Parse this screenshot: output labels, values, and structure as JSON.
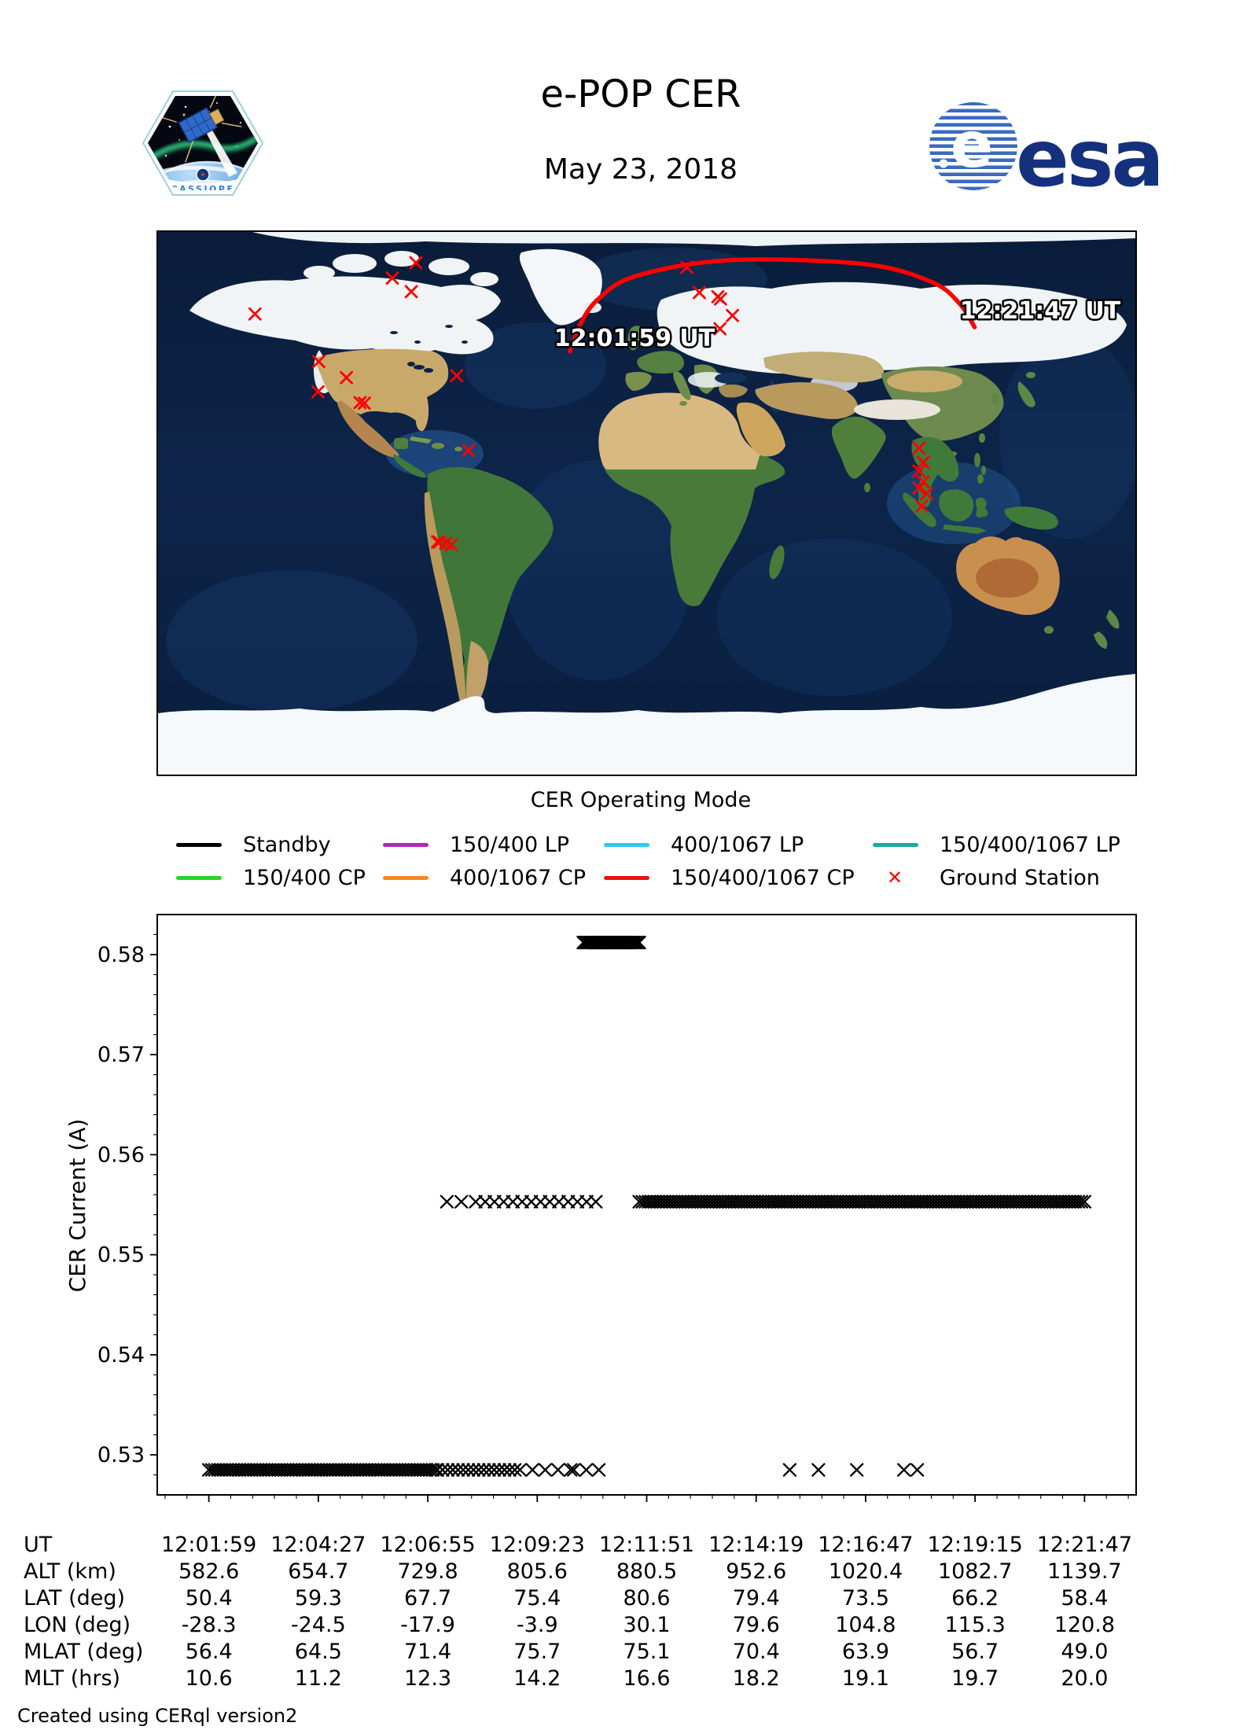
{
  "header": {
    "title": "e-POP CER",
    "date": "May 23, 2018",
    "patch_label": "CASSIOPE",
    "esa_label": "esa",
    "esa_color": "#15317e"
  },
  "map": {
    "border_color": "#000000",
    "track_color": "#ff0000",
    "station_color": "#ff0000",
    "labels": [
      {
        "text": "12:01:59 UT",
        "fx": 0.4875,
        "fy": 0.21
      },
      {
        "text": "12:21:47 UT",
        "fx": 0.903,
        "fy": 0.16
      }
    ],
    "track_points_lonlat": [
      [
        -28.3,
        50.4
      ],
      [
        -24.5,
        59.3
      ],
      [
        -17.9,
        67.7
      ],
      [
        -3.9,
        75.4
      ],
      [
        30.1,
        80.6
      ],
      [
        79.6,
        79.4
      ],
      [
        104.8,
        73.5
      ],
      [
        115.3,
        66.2
      ],
      [
        120.8,
        58.4
      ]
    ],
    "ground_stations_lonlat": [
      [
        -85.0,
        79.8
      ],
      [
        -93.7,
        74.7
      ],
      [
        -86.7,
        70.2
      ],
      [
        -144.3,
        62.8
      ],
      [
        -120.8,
        47.0
      ],
      [
        -110.6,
        41.7
      ],
      [
        -121.1,
        37.0
      ],
      [
        -105.6,
        33.4
      ],
      [
        -104.0,
        33.2
      ],
      [
        -70.0,
        42.3
      ],
      [
        -65.6,
        17.5
      ],
      [
        -77.0,
        -12.8
      ],
      [
        -76.4,
        -12.9
      ],
      [
        -74.0,
        -13.3
      ],
      [
        -72.0,
        -13.8
      ],
      [
        14.8,
        78.3
      ],
      [
        19.4,
        69.9
      ],
      [
        26.2,
        68.5
      ],
      [
        27.2,
        67.8
      ],
      [
        31.6,
        62.3
      ],
      [
        27.0,
        57.9
      ],
      [
        100.3,
        18.3
      ],
      [
        101.9,
        13.6
      ],
      [
        100.3,
        10.7
      ],
      [
        101.9,
        7.1
      ],
      [
        100.3,
        5.0
      ],
      [
        103.2,
        3.2
      ],
      [
        101.3,
        -1.0
      ]
    ]
  },
  "legend": {
    "title": "CER Operating Mode",
    "items": [
      {
        "label": "Standby",
        "color": "#000000",
        "marker": "line",
        "col": 0,
        "row": 0
      },
      {
        "label": "150/400 LP",
        "color": "#b428b4",
        "marker": "line",
        "col": 1,
        "row": 0
      },
      {
        "label": "400/1067 LP",
        "color": "#2fc8f0",
        "marker": "line",
        "col": 2,
        "row": 0
      },
      {
        "label": "150/400/1067 LP",
        "color": "#1fa8a0",
        "marker": "line",
        "col": 3,
        "row": 0
      },
      {
        "label": "150/400 CP",
        "color": "#28d528",
        "marker": "line",
        "col": 0,
        "row": 1
      },
      {
        "label": "400/1067 CP",
        "color": "#f6871f",
        "marker": "line",
        "col": 1,
        "row": 1
      },
      {
        "label": "150/400/1067 CP",
        "color": "#e81216",
        "marker": "line",
        "col": 2,
        "row": 1
      },
      {
        "label": "Ground Station",
        "color": "#ff0000",
        "marker": "x",
        "col": 3,
        "row": 1
      }
    ]
  },
  "chart_data": {
    "type": "scatter",
    "marker": "x",
    "color": "#000000",
    "ylabel": "CER Current (A)",
    "ylim": [
      0.526,
      0.584
    ],
    "yticks": [
      0.53,
      0.54,
      0.55,
      0.56,
      0.57,
      0.58
    ],
    "ytick_labels": [
      "0.53",
      "0.54",
      "0.55",
      "0.56",
      "0.57",
      "0.58"
    ],
    "y_minor_step": 0.002,
    "grid": false,
    "xlim_seconds": [
      -70,
      1258
    ],
    "x_major_ticks_seconds": [
      0,
      148.5,
      297,
      445.5,
      594,
      742.5,
      891,
      1039.5,
      1188
    ],
    "x_minor_step_seconds": 29.7,
    "x_tick_times": [
      "12:01:59",
      "12:04:27",
      "12:06:55",
      "12:09:23",
      "12:11:51",
      "12:14:19",
      "12:16:47",
      "12:19:15",
      "12:21:47"
    ],
    "current_levels_amps": {
      "standby": 0.5285,
      "mid": 0.5553,
      "high": 0.5812
    },
    "segments": [
      {
        "t0": 0,
        "t1": 308,
        "value": 0.5285,
        "n": 76
      },
      {
        "t0": 310,
        "t1": 422,
        "value": 0.5285,
        "n": 17
      },
      {
        "t0": 439,
        "t1": 491,
        "value": 0.5285,
        "n": 4
      },
      {
        "t0": 495,
        "t1": 529,
        "value": 0.5285,
        "n": 3
      },
      {
        "t0": 788,
        "t1": 788,
        "value": 0.5285,
        "n": 1
      },
      {
        "t0": 827,
        "t1": 827,
        "value": 0.5285,
        "n": 1
      },
      {
        "t0": 879,
        "t1": 879,
        "value": 0.5285,
        "n": 1
      },
      {
        "t0": 943,
        "t1": 961,
        "value": 0.5285,
        "n": 2
      },
      {
        "t0": 323,
        "t1": 362,
        "value": 0.5553,
        "n": 3
      },
      {
        "t0": 375,
        "t1": 525,
        "value": 0.5553,
        "n": 13
      },
      {
        "t0": 584,
        "t1": 1188,
        "value": 0.5553,
        "n": 145
      },
      {
        "t0": 508,
        "t1": 584,
        "value": 0.5812,
        "n": 42
      }
    ]
  },
  "table": {
    "rows": [
      {
        "label": "UT",
        "values": [
          "12:01:59",
          "12:04:27",
          "12:06:55",
          "12:09:23",
          "12:11:51",
          "12:14:19",
          "12:16:47",
          "12:19:15",
          "12:21:47"
        ]
      },
      {
        "label": "ALT (km)",
        "values": [
          "582.6",
          "654.7",
          "729.8",
          "805.6",
          "880.5",
          "952.6",
          "1020.4",
          "1082.7",
          "1139.7"
        ]
      },
      {
        "label": "LAT (deg)",
        "values": [
          "50.4",
          "59.3",
          "67.7",
          "75.4",
          "80.6",
          "79.4",
          "73.5",
          "66.2",
          "58.4"
        ]
      },
      {
        "label": "LON (deg)",
        "values": [
          "-28.3",
          "-24.5",
          "-17.9",
          "-3.9",
          "30.1",
          "79.6",
          "104.8",
          "115.3",
          "120.8"
        ]
      },
      {
        "label": "MLAT (deg)",
        "values": [
          "56.4",
          "64.5",
          "71.4",
          "75.7",
          "75.1",
          "70.4",
          "63.9",
          "56.7",
          "49.0"
        ]
      },
      {
        "label": "MLT (hrs)",
        "values": [
          "10.6",
          "11.2",
          "12.3",
          "14.2",
          "16.6",
          "18.2",
          "19.1",
          "19.7",
          "20.0"
        ]
      }
    ]
  },
  "footer": {
    "credit": "Created using CERql version2"
  }
}
